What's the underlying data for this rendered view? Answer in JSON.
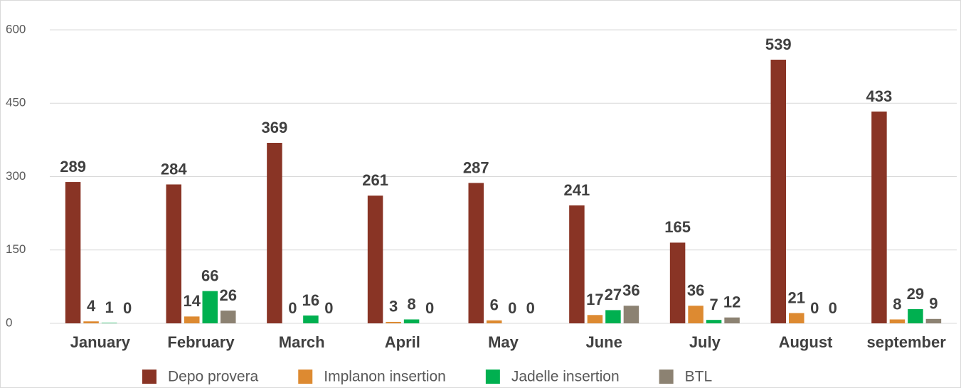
{
  "chart_data": {
    "type": "bar",
    "categories": [
      "January",
      "February",
      "March",
      "April",
      "May",
      "June",
      "July",
      "August",
      "september"
    ],
    "series": [
      {
        "name": "Depo provera",
        "color": "#893425",
        "values": [
          289,
          284,
          369,
          261,
          287,
          241,
          165,
          539,
          433
        ]
      },
      {
        "name": "Implanon insertion",
        "color": "#dd8a31",
        "values": [
          4,
          14,
          0,
          3,
          6,
          17,
          36,
          21,
          8
        ]
      },
      {
        "name": "Jadelle insertion",
        "color": "#00b050",
        "values": [
          1,
          66,
          16,
          8,
          0,
          27,
          7,
          0,
          29
        ]
      },
      {
        "name": "BTL",
        "color": "#8c8272",
        "values": [
          0,
          26,
          0,
          0,
          0,
          36,
          12,
          0,
          9
        ]
      }
    ],
    "ylim": [
      0,
      600
    ],
    "yticks": [
      0,
      150,
      300,
      450,
      600
    ],
    "grid": true,
    "legend": "bottom"
  }
}
